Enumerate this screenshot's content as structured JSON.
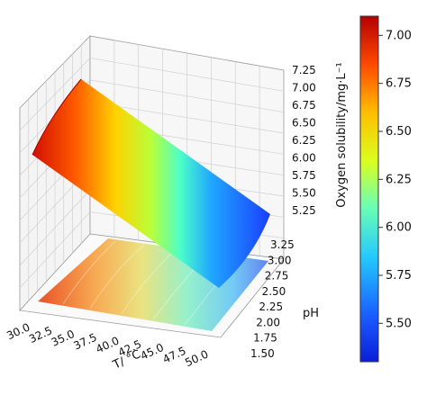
{
  "chart_data": {
    "type": "surface3d",
    "title": "",
    "xlabel": "T/ °C",
    "ylabel": "pH",
    "zlabel": "Oxygen solubility/mg·L⁻¹",
    "x_ticks": [
      "30.0",
      "32.5",
      "35.0",
      "37.5",
      "40.0",
      "42.5",
      "45.0",
      "47.5",
      "50.0"
    ],
    "y_ticks": [
      "1.50",
      "1.75",
      "2.00",
      "2.25",
      "2.50",
      "2.75",
      "3.00",
      "3.25"
    ],
    "z_ticks": [
      "5.25",
      "5.50",
      "5.75",
      "6.00",
      "6.25",
      "6.50",
      "6.75",
      "7.00",
      "7.25"
    ],
    "xlim": [
      30,
      50
    ],
    "ylim": [
      1.5,
      3.3
    ],
    "zlim": [
      5.2,
      7.3
    ],
    "surface": {
      "x": [
        30,
        35,
        40,
        45,
        50
      ],
      "y": [
        1.5,
        2.0,
        2.5,
        3.0,
        3.3
      ],
      "z": [
        [
          7.1,
          7.05,
          7.02,
          7.0,
          7.0
        ],
        [
          6.7,
          6.62,
          6.58,
          6.55,
          6.55
        ],
        [
          6.2,
          6.1,
          6.05,
          6.02,
          6.02
        ],
        [
          5.75,
          5.62,
          5.55,
          5.52,
          5.52
        ],
        [
          5.4,
          5.28,
          5.22,
          5.2,
          5.2
        ]
      ]
    },
    "colorbar": {
      "ticks": [
        "5.50",
        "5.75",
        "6.00",
        "6.25",
        "6.50",
        "6.75",
        "7.00"
      ],
      "range": [
        5.3,
        7.1
      ],
      "colormap": "jet"
    },
    "contour_projection": true,
    "grid": true
  }
}
